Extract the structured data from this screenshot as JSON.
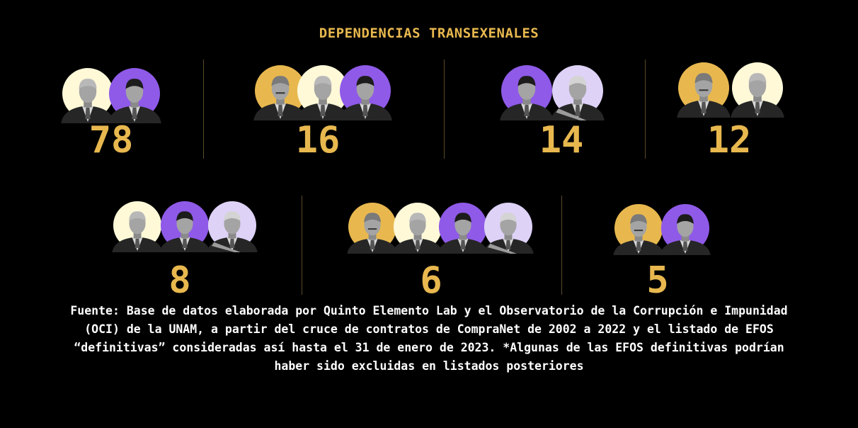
{
  "title": "DEPENDENCIAS TRANSEXENALES",
  "colors": {
    "accent": "#e8b84f",
    "purple": "#8f5ae8",
    "cream": "#fff9d8",
    "lilac": "#ded2f7",
    "text": "#ffffff",
    "background": "#000000"
  },
  "groups": [
    {
      "count": "78",
      "presidents": [
        "calderon",
        "pena-nieto"
      ]
    },
    {
      "count": "16",
      "presidents": [
        "fox",
        "calderon",
        "pena-nieto"
      ]
    },
    {
      "count": "14",
      "presidents": [
        "pena-nieto",
        "lopez-obrador"
      ]
    },
    {
      "count": "12",
      "presidents": [
        "fox",
        "calderon"
      ]
    },
    {
      "count": "8",
      "presidents": [
        "calderon",
        "pena-nieto",
        "lopez-obrador"
      ]
    },
    {
      "count": "6",
      "presidents": [
        "fox",
        "calderon",
        "pena-nieto",
        "lopez-obrador"
      ]
    },
    {
      "count": "5",
      "presidents": [
        "fox",
        "pena-nieto"
      ]
    }
  ],
  "source_lines": [
    "Fuente: Base de datos elaborada por Quinto Elemento Lab y el Observatorio de la Corrupción e Impunidad",
    "(OCI) de la UNAM, a partir del cruce de contratos de CompraNet de 2002 a 2022 y el listado de EFOS",
    "“definitivas” consideradas así hasta el 31 de enero de 2023. *Algunas de las EFOS definitivas podrían",
    "haber sido excluidas en listados posteriores"
  ]
}
